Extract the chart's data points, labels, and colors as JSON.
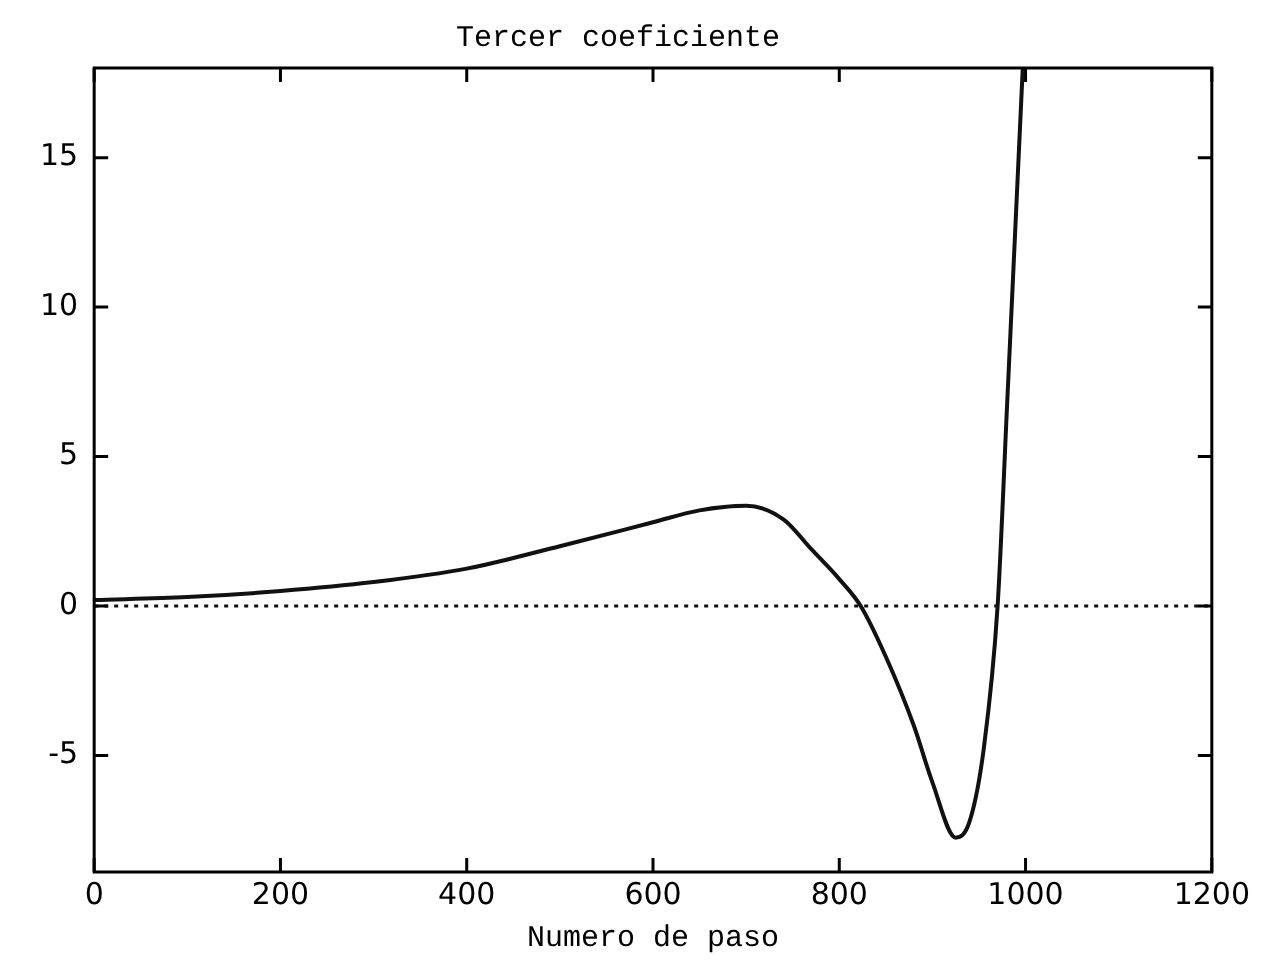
{
  "chart_data": {
    "type": "line",
    "title": "Tercer coeficiente",
    "xlabel": "Numero de paso",
    "x": [
      0,
      100,
      200,
      300,
      400,
      500,
      600,
      650,
      700,
      740,
      770,
      800,
      823,
      850,
      880,
      900,
      925,
      940,
      955,
      970,
      980,
      990,
      997
    ],
    "series": [
      {
        "color": "#111111",
        "values": [
          0.2,
          0.3,
          0.5,
          0.8,
          1.25,
          2.0,
          2.8,
          3.2,
          3.35,
          2.9,
          1.9,
          0.9,
          0,
          -1.7,
          -4.0,
          -5.9,
          -7.75,
          -7.2,
          -4.8,
          0,
          6.6,
          13.3,
          18
        ]
      }
    ],
    "xlim": [
      0,
      1200
    ],
    "xticks": [
      0,
      200,
      400,
      600,
      800,
      1000,
      1200
    ],
    "ylim": [
      -8.9,
      18
    ],
    "yticks": [
      -5,
      0,
      5,
      10,
      15
    ],
    "ref_lines": [
      {
        "axis": "y",
        "value": 0,
        "color": "#111111",
        "line_style": "dotted"
      }
    ],
    "grid": false,
    "legend": false,
    "marker": "none",
    "line_style": "solid"
  }
}
